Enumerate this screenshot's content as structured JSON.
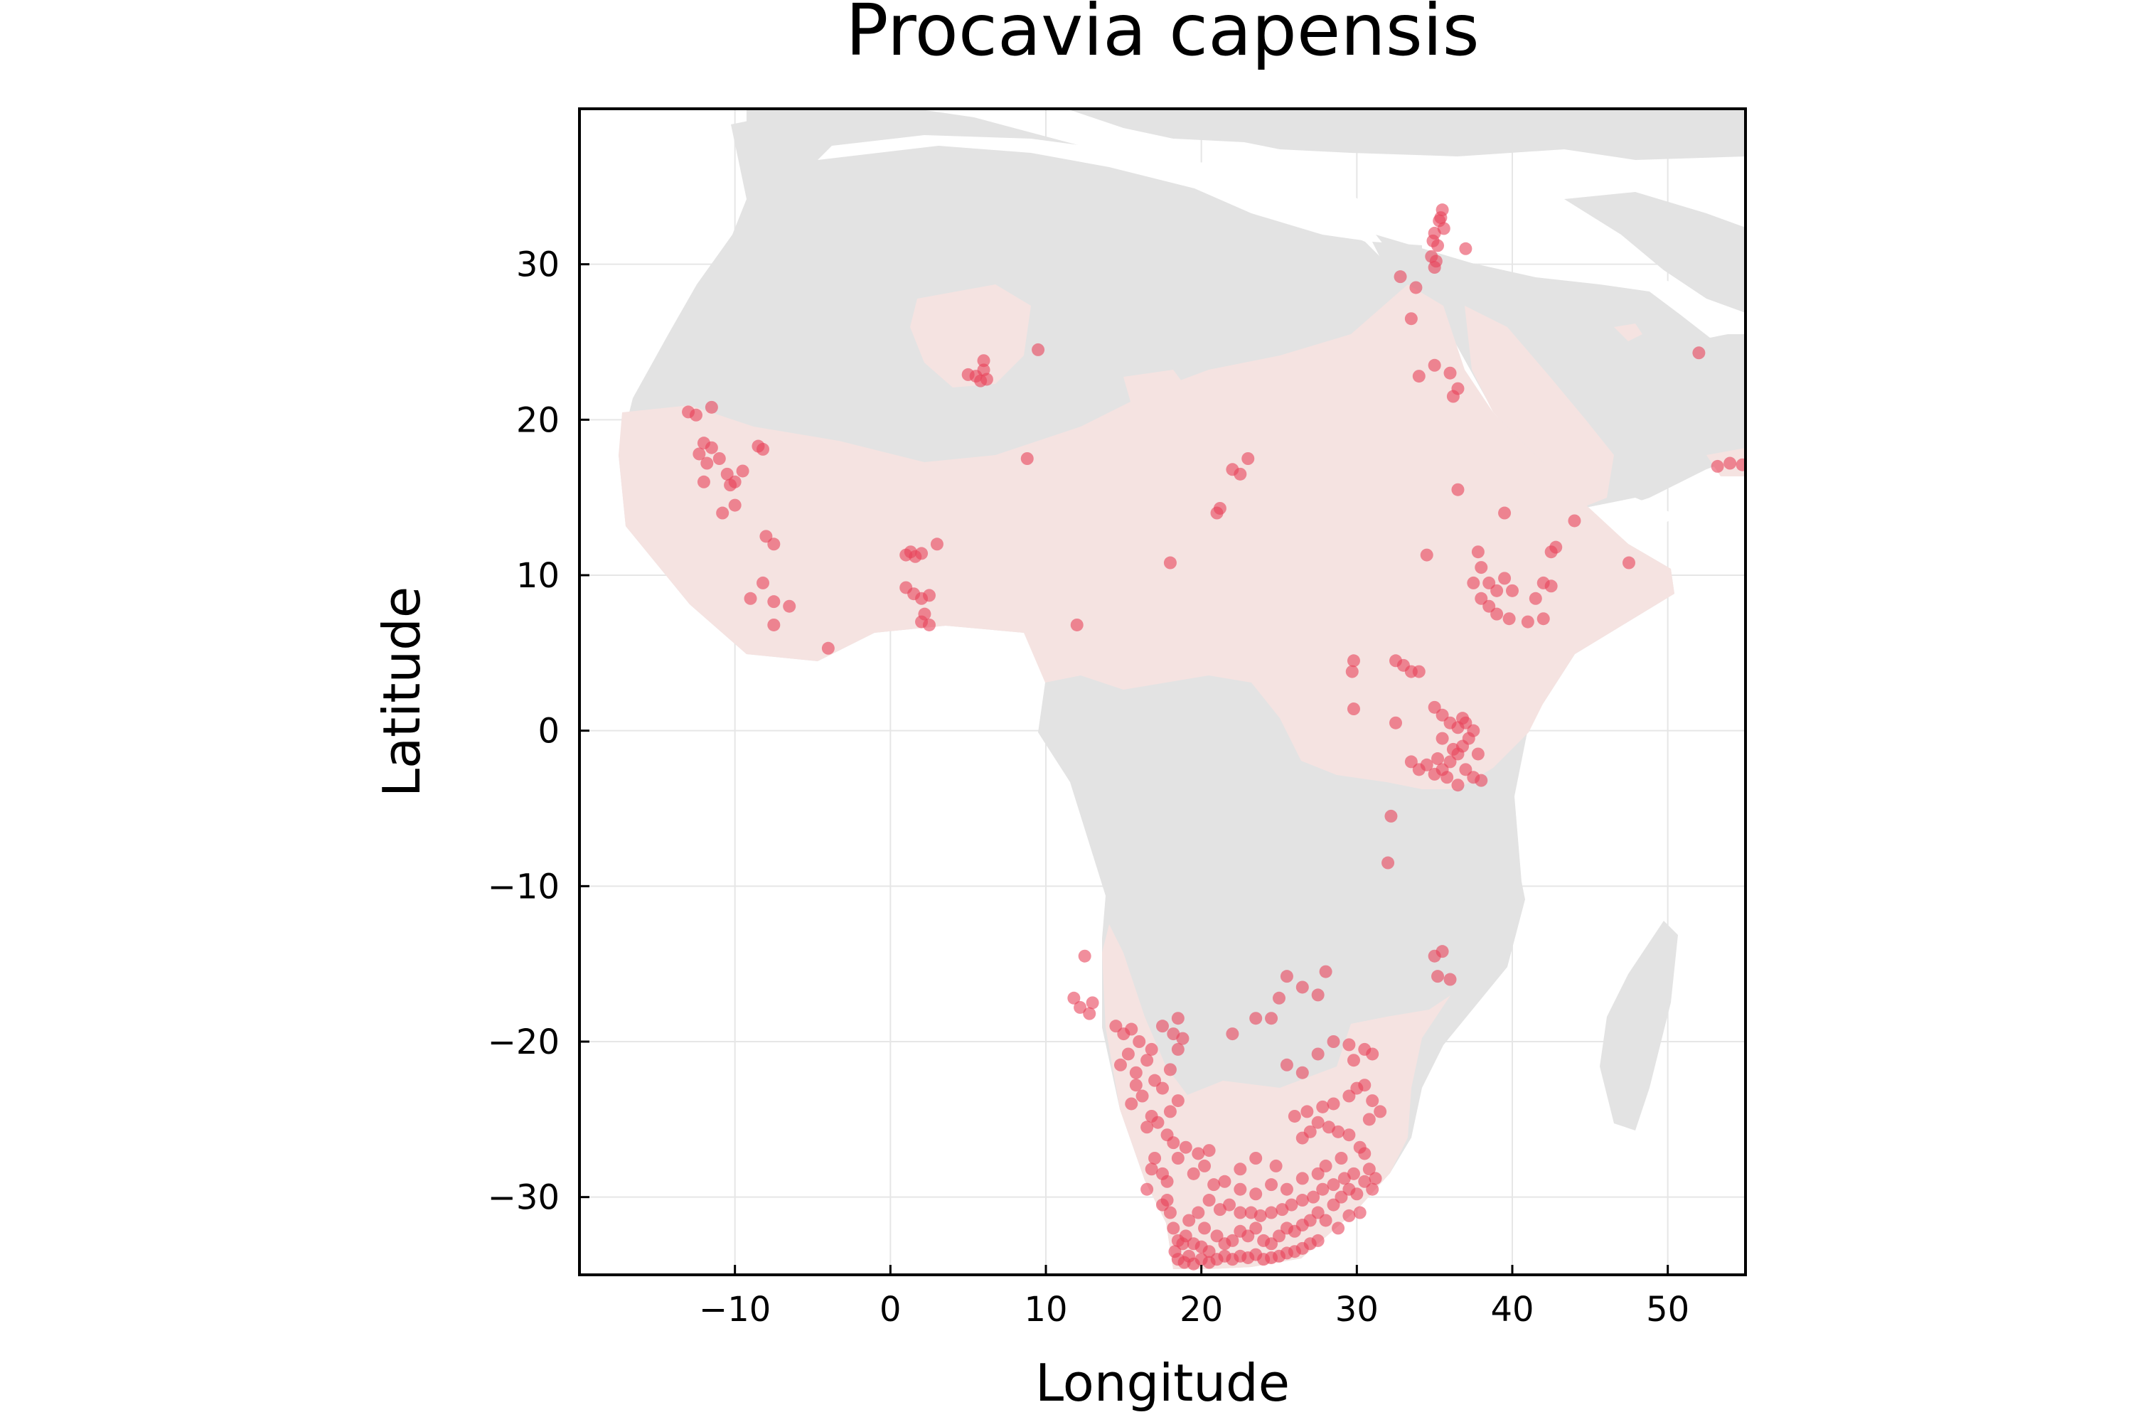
{
  "chart_data": {
    "type": "scatter",
    "title": "Procavia capensis",
    "xlabel": "Longitude",
    "ylabel": "Latitude",
    "xlim": [
      -20,
      55
    ],
    "ylim": [
      -35,
      40
    ],
    "x_ticks": [
      -10,
      0,
      10,
      20,
      30,
      40,
      50
    ],
    "y_ticks": [
      -30,
      -20,
      -10,
      0,
      10,
      20,
      30
    ],
    "x_tick_labels": [
      "−10",
      "0",
      "10",
      "20",
      "30",
      "40",
      "50"
    ],
    "y_tick_labels": [
      "−30",
      "−20",
      "−10",
      "0",
      "10",
      "20",
      "30"
    ],
    "grid": true,
    "colors": {
      "land": "#e3e3e3",
      "range": "#f5e3e1",
      "points": "#e8435a",
      "grid": "#e6e6e6",
      "frame": "#000000"
    },
    "series": [
      {
        "points": [
          [
            35.5,
            33.5
          ],
          [
            35.3,
            32.8
          ],
          [
            35.0,
            32.0
          ],
          [
            35.2,
            31.2
          ],
          [
            34.8,
            30.5
          ],
          [
            35.0,
            29.8
          ],
          [
            35.4,
            33.0
          ],
          [
            34.9,
            31.5
          ],
          [
            35.6,
            32.3
          ],
          [
            35.1,
            30.2
          ],
          [
            37.0,
            31.0
          ],
          [
            33.8,
            28.5
          ],
          [
            32.8,
            29.2
          ],
          [
            33.5,
            26.5
          ],
          [
            35.0,
            23.5
          ],
          [
            34.0,
            22.8
          ],
          [
            36.0,
            23.0
          ],
          [
            36.5,
            22.0
          ],
          [
            36.2,
            21.5
          ],
          [
            36.5,
            15.5
          ],
          [
            52.0,
            24.3
          ],
          [
            53.2,
            17.0
          ],
          [
            54.0,
            17.2
          ],
          [
            54.8,
            17.1
          ],
          [
            44.0,
            13.5
          ],
          [
            42.8,
            11.8
          ],
          [
            42.5,
            11.5
          ],
          [
            47.5,
            10.8
          ],
          [
            38.0,
            10.5
          ],
          [
            38.5,
            9.5
          ],
          [
            39.5,
            9.8
          ],
          [
            40.0,
            9.0
          ],
          [
            39.0,
            9.0
          ],
          [
            37.5,
            9.5
          ],
          [
            38.0,
            8.5
          ],
          [
            38.5,
            8.0
          ],
          [
            39.0,
            7.5
          ],
          [
            39.8,
            7.2
          ],
          [
            41.0,
            7.0
          ],
          [
            42.0,
            7.2
          ],
          [
            41.5,
            8.5
          ],
          [
            42.0,
            9.5
          ],
          [
            42.5,
            9.3
          ],
          [
            37.8,
            11.5
          ],
          [
            39.5,
            14.0
          ],
          [
            34.5,
            11.3
          ],
          [
            29.8,
            4.5
          ],
          [
            29.7,
            3.8
          ],
          [
            32.5,
            4.5
          ],
          [
            33.0,
            4.2
          ],
          [
            33.5,
            3.8
          ],
          [
            34.0,
            3.8
          ],
          [
            29.8,
            1.4
          ],
          [
            32.5,
            0.5
          ],
          [
            35.0,
            1.5
          ],
          [
            35.5,
            1.0
          ],
          [
            36.0,
            0.5
          ],
          [
            36.5,
            0.2
          ],
          [
            37.0,
            0.5
          ],
          [
            37.5,
            0.0
          ],
          [
            37.2,
            -0.5
          ],
          [
            36.8,
            -1.0
          ],
          [
            36.5,
            -1.5
          ],
          [
            36.0,
            -2.0
          ],
          [
            35.5,
            -2.5
          ],
          [
            35.0,
            -2.8
          ],
          [
            34.5,
            -2.2
          ],
          [
            35.2,
            -1.8
          ],
          [
            36.2,
            -1.2
          ],
          [
            37.0,
            -2.5
          ],
          [
            37.5,
            -3.0
          ],
          [
            38.0,
            -3.2
          ],
          [
            36.5,
            -3.5
          ],
          [
            35.8,
            -3.0
          ],
          [
            34.0,
            -2.5
          ],
          [
            33.5,
            -2.0
          ],
          [
            35.5,
            -0.5
          ],
          [
            36.8,
            0.8
          ],
          [
            37.8,
            -1.5
          ],
          [
            32.2,
            -5.5
          ],
          [
            32.0,
            -8.5
          ],
          [
            35.0,
            -14.5
          ],
          [
            35.5,
            -14.2
          ],
          [
            35.2,
            -15.8
          ],
          [
            36.0,
            -16.0
          ],
          [
            -13.0,
            20.5
          ],
          [
            -12.5,
            20.3
          ],
          [
            -11.5,
            20.8
          ],
          [
            -12.0,
            18.5
          ],
          [
            -11.5,
            18.2
          ],
          [
            -12.3,
            17.8
          ],
          [
            -11.8,
            17.2
          ],
          [
            -11.0,
            17.5
          ],
          [
            -12.0,
            16.0
          ],
          [
            -10.5,
            16.5
          ],
          [
            -10.0,
            16.0
          ],
          [
            -9.5,
            16.7
          ],
          [
            -10.3,
            15.8
          ],
          [
            -10.8,
            14.0
          ],
          [
            -10.0,
            14.5
          ],
          [
            -8.5,
            18.3
          ],
          [
            -8.2,
            18.1
          ],
          [
            -8.0,
            12.5
          ],
          [
            -7.5,
            12.0
          ],
          [
            -8.2,
            9.5
          ],
          [
            -9.0,
            8.5
          ],
          [
            -7.5,
            8.3
          ],
          [
            -6.5,
            8.0
          ],
          [
            -7.5,
            6.8
          ],
          [
            -4.0,
            5.3
          ],
          [
            1.3,
            11.5
          ],
          [
            1.6,
            11.2
          ],
          [
            2.0,
            11.4
          ],
          [
            1.0,
            11.3
          ],
          [
            3.0,
            12.0
          ],
          [
            1.0,
            9.2
          ],
          [
            1.5,
            8.8
          ],
          [
            2.0,
            8.5
          ],
          [
            2.5,
            8.7
          ],
          [
            2.2,
            7.5
          ],
          [
            2.0,
            7.0
          ],
          [
            2.5,
            6.8
          ],
          [
            5.5,
            22.8
          ],
          [
            5.8,
            22.5
          ],
          [
            6.0,
            23.2
          ],
          [
            6.2,
            22.6
          ],
          [
            5.0,
            22.9
          ],
          [
            6.0,
            23.8
          ],
          [
            9.5,
            24.5
          ],
          [
            8.8,
            17.5
          ],
          [
            12.0,
            6.8
          ],
          [
            18.0,
            10.8
          ],
          [
            21.0,
            14.0
          ],
          [
            21.2,
            14.3
          ],
          [
            22.0,
            16.8
          ],
          [
            22.5,
            16.5
          ],
          [
            23.0,
            17.5
          ],
          [
            12.5,
            -14.5
          ],
          [
            11.8,
            -17.2
          ],
          [
            12.2,
            -17.8
          ],
          [
            12.8,
            -18.2
          ],
          [
            13.0,
            -17.5
          ],
          [
            14.5,
            -19.0
          ],
          [
            15.0,
            -19.5
          ],
          [
            15.5,
            -19.2
          ],
          [
            16.0,
            -20.0
          ],
          [
            15.3,
            -20.8
          ],
          [
            14.8,
            -21.5
          ],
          [
            15.8,
            -22.0
          ],
          [
            16.5,
            -21.2
          ],
          [
            17.0,
            -22.5
          ],
          [
            17.5,
            -23.0
          ],
          [
            16.2,
            -23.5
          ],
          [
            15.5,
            -24.0
          ],
          [
            16.8,
            -24.8
          ],
          [
            17.2,
            -25.2
          ],
          [
            18.0,
            -24.5
          ],
          [
            18.5,
            -23.8
          ],
          [
            17.8,
            -26.0
          ],
          [
            16.5,
            -25.5
          ],
          [
            15.8,
            -22.8
          ],
          [
            16.8,
            -20.5
          ],
          [
            18.2,
            -19.5
          ],
          [
            18.5,
            -20.5
          ],
          [
            18.0,
            -21.8
          ],
          [
            17.5,
            -19.0
          ],
          [
            18.8,
            -19.8
          ],
          [
            18.5,
            -18.5
          ],
          [
            17.0,
            -27.5
          ],
          [
            16.8,
            -28.2
          ],
          [
            17.5,
            -28.5
          ],
          [
            16.5,
            -29.5
          ],
          [
            17.8,
            -29.0
          ],
          [
            17.8,
            -30.2
          ],
          [
            18.0,
            -31.0
          ],
          [
            17.5,
            -30.5
          ],
          [
            18.2,
            -32.0
          ],
          [
            18.5,
            -32.8
          ],
          [
            18.3,
            -33.5
          ],
          [
            18.5,
            -34.0
          ],
          [
            18.9,
            -34.2
          ],
          [
            19.2,
            -33.8
          ],
          [
            19.5,
            -34.3
          ],
          [
            20.0,
            -34.0
          ],
          [
            20.5,
            -34.2
          ],
          [
            21.0,
            -34.0
          ],
          [
            21.5,
            -33.8
          ],
          [
            22.0,
            -34.0
          ],
          [
            22.5,
            -33.8
          ],
          [
            23.0,
            -33.9
          ],
          [
            23.5,
            -33.7
          ],
          [
            24.0,
            -34.0
          ],
          [
            24.5,
            -33.9
          ],
          [
            25.0,
            -33.8
          ],
          [
            25.5,
            -33.6
          ],
          [
            26.0,
            -33.5
          ],
          [
            26.5,
            -33.3
          ],
          [
            27.0,
            -33.0
          ],
          [
            27.5,
            -32.8
          ],
          [
            18.8,
            -33.0
          ],
          [
            19.0,
            -32.5
          ],
          [
            19.5,
            -33.0
          ],
          [
            20.0,
            -33.2
          ],
          [
            20.5,
            -33.5
          ],
          [
            19.2,
            -31.5
          ],
          [
            19.8,
            -31.0
          ],
          [
            20.2,
            -32.0
          ],
          [
            21.0,
            -32.5
          ],
          [
            21.5,
            -33.0
          ],
          [
            22.0,
            -32.8
          ],
          [
            22.5,
            -32.2
          ],
          [
            23.0,
            -32.5
          ],
          [
            23.5,
            -32.0
          ],
          [
            24.0,
            -32.8
          ],
          [
            24.5,
            -33.0
          ],
          [
            25.0,
            -32.5
          ],
          [
            25.5,
            -32.0
          ],
          [
            26.0,
            -32.2
          ],
          [
            26.5,
            -31.8
          ],
          [
            27.0,
            -31.5
          ],
          [
            27.5,
            -31.0
          ],
          [
            28.0,
            -31.5
          ],
          [
            28.5,
            -30.5
          ],
          [
            29.0,
            -30.0
          ],
          [
            29.5,
            -29.5
          ],
          [
            30.0,
            -29.8
          ],
          [
            30.5,
            -29.0
          ],
          [
            29.8,
            -28.5
          ],
          [
            29.2,
            -28.8
          ],
          [
            28.5,
            -29.2
          ],
          [
            27.8,
            -29.5
          ],
          [
            27.2,
            -30.0
          ],
          [
            26.5,
            -30.2
          ],
          [
            25.8,
            -30.5
          ],
          [
            25.2,
            -30.8
          ],
          [
            24.5,
            -31.0
          ],
          [
            23.8,
            -31.2
          ],
          [
            23.2,
            -31.0
          ],
          [
            22.5,
            -31.0
          ],
          [
            21.8,
            -30.5
          ],
          [
            21.2,
            -30.8
          ],
          [
            20.5,
            -30.2
          ],
          [
            20.8,
            -29.2
          ],
          [
            21.5,
            -29.0
          ],
          [
            22.5,
            -29.5
          ],
          [
            23.5,
            -29.8
          ],
          [
            24.5,
            -29.2
          ],
          [
            25.5,
            -29.5
          ],
          [
            26.5,
            -28.8
          ],
          [
            27.5,
            -28.5
          ],
          [
            28.0,
            -28.0
          ],
          [
            29.0,
            -27.5
          ],
          [
            30.5,
            -27.2
          ],
          [
            30.8,
            -28.2
          ],
          [
            31.2,
            -28.8
          ],
          [
            30.2,
            -26.8
          ],
          [
            29.5,
            -26.0
          ],
          [
            28.8,
            -25.8
          ],
          [
            28.2,
            -25.5
          ],
          [
            27.5,
            -25.2
          ],
          [
            27.0,
            -25.8
          ],
          [
            26.5,
            -26.2
          ],
          [
            26.0,
            -24.8
          ],
          [
            26.8,
            -24.5
          ],
          [
            27.8,
            -24.2
          ],
          [
            28.5,
            -24.0
          ],
          [
            29.5,
            -23.5
          ],
          [
            30.0,
            -23.0
          ],
          [
            30.5,
            -22.8
          ],
          [
            31.0,
            -23.8
          ],
          [
            30.8,
            -25.0
          ],
          [
            31.5,
            -24.5
          ],
          [
            29.8,
            -21.2
          ],
          [
            30.5,
            -20.5
          ],
          [
            31.0,
            -20.8
          ],
          [
            28.5,
            -20.0
          ],
          [
            29.5,
            -20.2
          ],
          [
            27.5,
            -20.8
          ],
          [
            26.5,
            -22.0
          ],
          [
            25.5,
            -21.5
          ],
          [
            24.5,
            -18.5
          ],
          [
            25.0,
            -17.2
          ],
          [
            26.5,
            -16.5
          ],
          [
            27.5,
            -17.0
          ],
          [
            25.5,
            -15.8
          ],
          [
            28.0,
            -15.5
          ],
          [
            23.5,
            -18.5
          ],
          [
            22.0,
            -19.5
          ],
          [
            20.5,
            -27.0
          ],
          [
            19.8,
            -27.2
          ],
          [
            19.0,
            -26.8
          ],
          [
            18.5,
            -27.5
          ],
          [
            18.2,
            -26.5
          ],
          [
            19.5,
            -28.5
          ],
          [
            20.2,
            -28.0
          ],
          [
            22.5,
            -28.2
          ],
          [
            23.5,
            -27.5
          ],
          [
            24.8,
            -28.0
          ],
          [
            31.0,
            -29.5
          ],
          [
            30.2,
            -31.0
          ],
          [
            28.8,
            -32.0
          ],
          [
            29.5,
            -31.2
          ]
        ]
      }
    ]
  }
}
